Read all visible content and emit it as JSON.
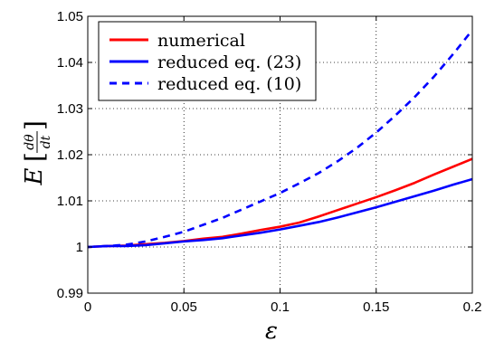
{
  "chart_data": {
    "type": "line",
    "xlabel": "ε",
    "ylabel": {
      "prefix": "E",
      "numerator": "dθ",
      "denominator": "dt"
    },
    "xlim": [
      0,
      0.2
    ],
    "ylim": [
      0.99,
      1.05
    ],
    "x_ticks": [
      0,
      0.05,
      0.1,
      0.15,
      0.2
    ],
    "x_tick_labels": [
      "0",
      "0.05",
      "0.1",
      "0.15",
      "0.2"
    ],
    "y_ticks": [
      0.99,
      1,
      1.01,
      1.02,
      1.03,
      1.04,
      1.05
    ],
    "y_tick_labels": [
      "0.99",
      "1",
      "1.01",
      "1.02",
      "1.03",
      "1.04",
      "1.05"
    ],
    "grid": true,
    "legend_position": "top-left",
    "series": [
      {
        "name": "numerical",
        "color": "#ff0000",
        "dash": "solid",
        "x": [
          0,
          0.01,
          0.02,
          0.03,
          0.04,
          0.05,
          0.06,
          0.07,
          0.08,
          0.09,
          0.1,
          0.11,
          0.12,
          0.13,
          0.14,
          0.15,
          0.16,
          0.17,
          0.18,
          0.19,
          0.2
        ],
        "y": [
          1.0,
          1.0002,
          1.0003,
          1.0006,
          1.0009,
          1.0013,
          1.0018,
          1.0022,
          1.0029,
          1.0037,
          1.0044,
          1.0053,
          1.0066,
          1.008,
          1.0094,
          1.0108,
          1.0123,
          1.0139,
          1.0157,
          1.0174,
          1.0191
        ]
      },
      {
        "name": "reduced eq. (23)",
        "color": "#0000ff",
        "dash": "solid",
        "x": [
          0,
          0.01,
          0.02,
          0.03,
          0.04,
          0.05,
          0.06,
          0.07,
          0.08,
          0.09,
          0.1,
          0.11,
          0.12,
          0.13,
          0.14,
          0.15,
          0.16,
          0.17,
          0.18,
          0.19,
          0.2
        ],
        "y": [
          1.0,
          1.0002,
          1.0002,
          1.0004,
          1.0008,
          1.0012,
          1.0015,
          1.0019,
          1.0025,
          1.0031,
          1.0038,
          1.0046,
          1.0054,
          1.0064,
          1.0075,
          1.0086,
          1.0098,
          1.011,
          1.0122,
          1.0135,
          1.0147
        ]
      },
      {
        "name": "reduced eq. (10)",
        "color": "#0000ff",
        "dash": "dashed",
        "x": [
          0,
          0.01,
          0.02,
          0.03,
          0.04,
          0.05,
          0.06,
          0.07,
          0.08,
          0.09,
          0.1,
          0.11,
          0.12,
          0.13,
          0.14,
          0.15,
          0.16,
          0.17,
          0.18,
          0.19,
          0.2
        ],
        "y": [
          1.0,
          1.0002,
          1.0005,
          1.0012,
          1.0022,
          1.0033,
          1.0048,
          1.0063,
          1.0081,
          1.0099,
          1.0117,
          1.0138,
          1.016,
          1.0186,
          1.0215,
          1.0248,
          1.0285,
          1.0325,
          1.0369,
          1.0418,
          1.047
        ]
      }
    ]
  }
}
